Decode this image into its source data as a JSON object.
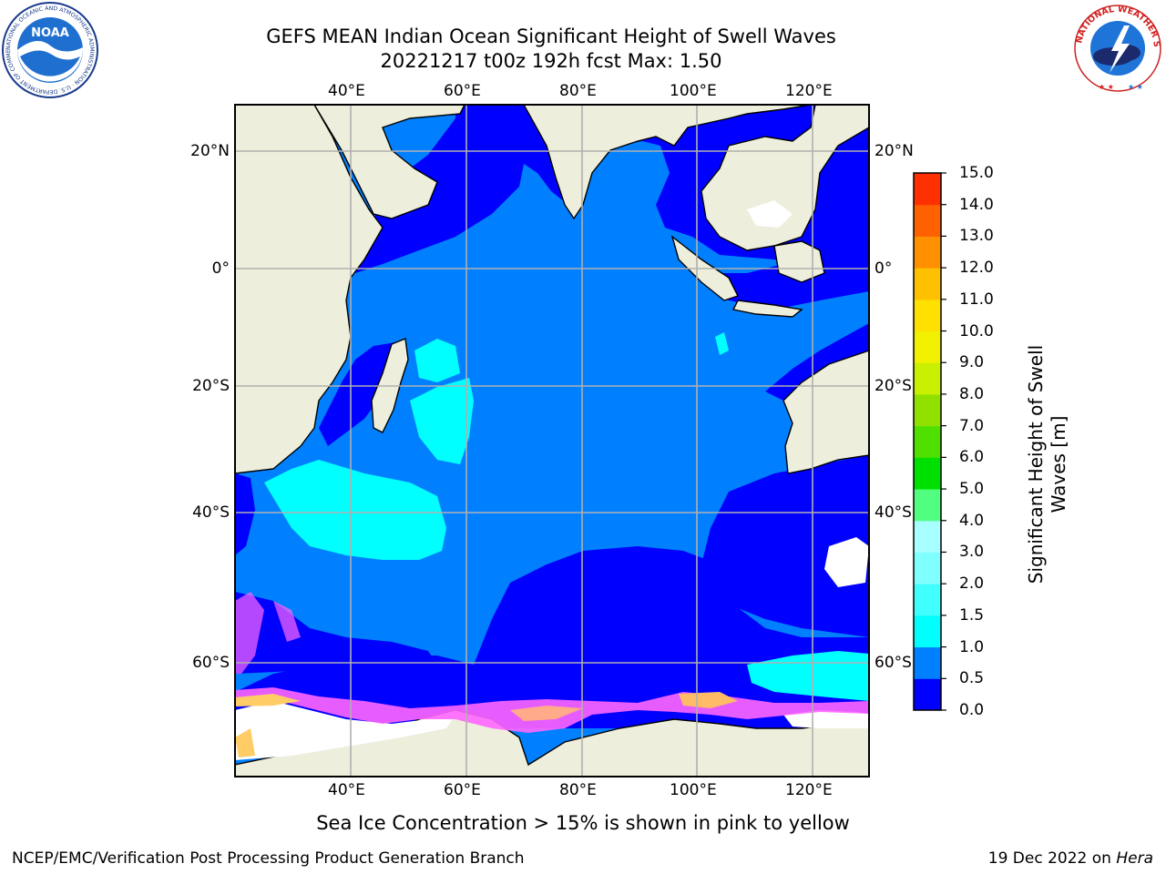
{
  "title": {
    "line1": "GEFS MEAN Indian Ocean Significant Height of Swell Waves",
    "line2": "20221217 t00z 192h fcst   Max: 1.50"
  },
  "map": {
    "lon_ticks": [
      "40°E",
      "60°E",
      "80°E",
      "100°E",
      "120°E"
    ],
    "lat_ticks": [
      "20°N",
      "0°",
      "20°S",
      "40°S",
      "60°S"
    ],
    "lon_tick_values": [
      40,
      60,
      80,
      100,
      120
    ],
    "lat_tick_values": [
      20,
      0,
      -20,
      -40,
      -60
    ],
    "extent": {
      "lon_min": 20,
      "lon_max": 130,
      "lat_min": -78,
      "lat_max": 28
    },
    "ocean_color": "#0080ff",
    "land_color": "#eeeedd",
    "max_value": 1.5
  },
  "colorbar": {
    "label": "Significant Height of Swell Waves [m]",
    "ticks": [
      "0.0",
      "0.5",
      "1.0",
      "1.5",
      "2.0",
      "3.0",
      "4.0",
      "5.0",
      "6.0",
      "7.0",
      "8.0",
      "9.0",
      "10.0",
      "11.0",
      "12.0",
      "13.0",
      "14.0",
      "15.0"
    ],
    "colors": [
      "#0000ff",
      "#0080ff",
      "#00ffff",
      "#40ffff",
      "#80ffff",
      "#a8ffff",
      "#50ff80",
      "#00e000",
      "#50e000",
      "#90e000",
      "#c8f000",
      "#f0f000",
      "#ffe000",
      "#ffc000",
      "#ff9000",
      "#ff6000",
      "#ff3000",
      "#ff0000"
    ]
  },
  "note": "Sea Ice Concentration > 15% is shown in pink to yellow",
  "footer": {
    "left": "NCEP/EMC/Verification Post Processing Product Generation Branch",
    "date": "19 Dec 2022 on ",
    "host": "Hera"
  },
  "logos": {
    "noaa_text": "NOAA",
    "noaa_ring": "NATIONAL OCEANIC AND ATMOSPHERIC ADMINISTRATION · U.S. DEPARTMENT OF COMMERCE ·",
    "nws_ring": "NATIONAL WEATHER SERVICE"
  }
}
